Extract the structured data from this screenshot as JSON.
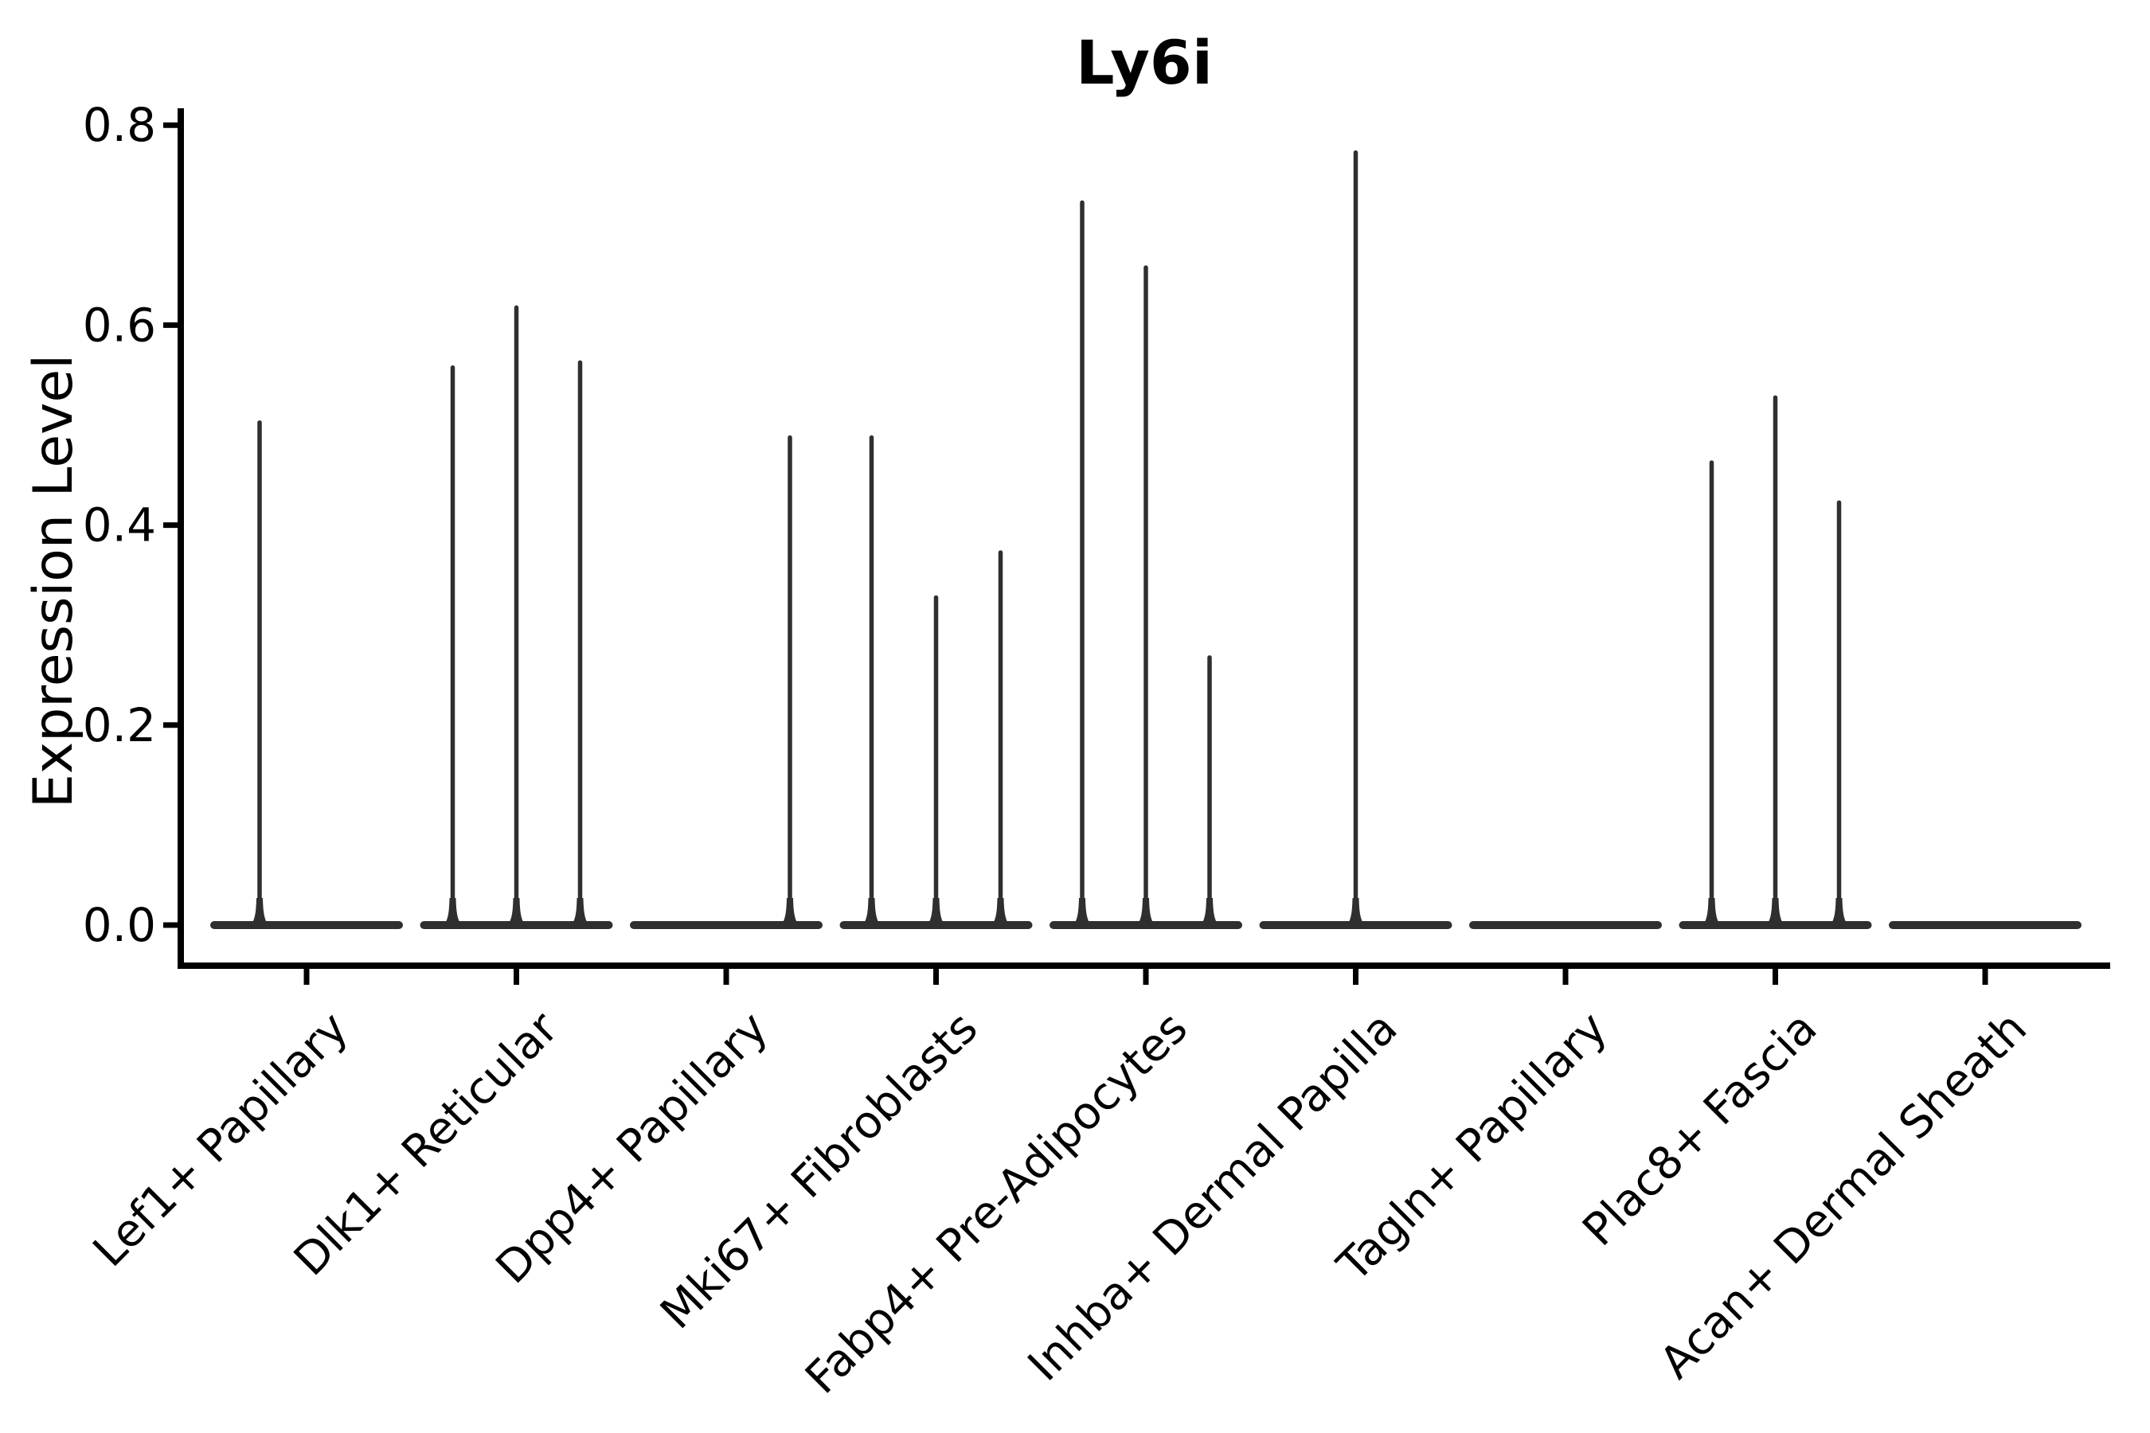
{
  "chart_data": {
    "type": "violin",
    "title": "Ly6i",
    "xlabel": "",
    "ylabel": "Expression Level",
    "ylim": [
      0,
      0.8
    ],
    "yticks": [
      0.0,
      0.2,
      0.4,
      0.6,
      0.8
    ],
    "ytick_labels": [
      "0.0",
      "0.2",
      "0.4",
      "0.6",
      "0.8"
    ],
    "grid": false,
    "legend": false,
    "x_tick_rotation_deg": 45,
    "violin_color": "#2f2f2f",
    "axis_color": "#000000",
    "baseline_value": 0.0,
    "note": "Each category shows a flat violin body at expression 0 with thin density spikes; spike peak = max expression level, dx = horizontal jitter offset in px from category center",
    "categories": [
      {
        "label": "Lef1+ Papillary",
        "spikes": [
          {
            "dx": -59,
            "peak": 0.505
          }
        ]
      },
      {
        "label": "Dlk1+ Reticular",
        "spikes": [
          {
            "dx": -80,
            "peak": 0.56
          },
          {
            "dx": 0,
            "peak": 0.62
          },
          {
            "dx": 80,
            "peak": 0.565
          }
        ]
      },
      {
        "label": "Dpp4+ Papillary",
        "spikes": [
          {
            "dx": 80,
            "peak": 0.49
          }
        ]
      },
      {
        "label": "Mki67+ Fibroblasts",
        "spikes": [
          {
            "dx": -81,
            "peak": 0.49
          },
          {
            "dx": 0,
            "peak": 0.33
          },
          {
            "dx": 81,
            "peak": 0.375
          }
        ]
      },
      {
        "label": "Fabp4+ Pre-Adipocytes",
        "spikes": [
          {
            "dx": -80,
            "peak": 0.725
          },
          {
            "dx": 0,
            "peak": 0.66
          },
          {
            "dx": 80,
            "peak": 0.27
          }
        ]
      },
      {
        "label": "Inhba+ Dermal Papilla",
        "spikes": [
          {
            "dx": 0,
            "peak": 0.775
          }
        ]
      },
      {
        "label": "Tagln+ Papillary",
        "spikes": []
      },
      {
        "label": "Plac8+ Fascia",
        "spikes": [
          {
            "dx": -80,
            "peak": 0.465
          },
          {
            "dx": 0,
            "peak": 0.53
          },
          {
            "dx": 80,
            "peak": 0.425
          }
        ]
      },
      {
        "label": "Acan+ Dermal Sheath",
        "spikes": []
      }
    ]
  }
}
